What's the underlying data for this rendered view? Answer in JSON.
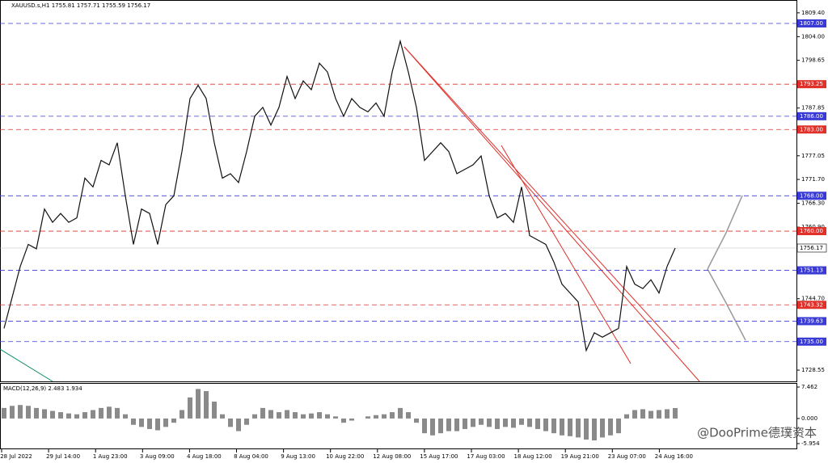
{
  "chart_data": {
    "type": "line",
    "header": "XAUUSD.s,H1  1755.81 1757.71 1755.59 1756.17",
    "watermark": "@DooPrime德璞资本",
    "ylim": [
      1726.0,
      1812.3
    ],
    "yticks": [
      {
        "value": 1809.4,
        "label": "1809.40"
      },
      {
        "value": 1804.0,
        "label": "1804.00"
      },
      1798.65,
      1787.85,
      1777.05,
      {
        "value": 1771.7,
        "label": "1771.70"
      },
      {
        "value": 1766.3,
        "label": "1766.30"
      },
      {
        "value": 1760.9,
        "label": "1760.90"
      },
      {
        "value": 1744.7,
        "label": "1744.70"
      },
      1728.55
    ],
    "xtick_labels": [
      "28 Jul 2022",
      "29 Jul 14:00",
      "1 Aug 23:00",
      "3 Aug 09:00",
      "4 Aug 18:00",
      "8 Aug 04:00",
      "9 Aug 13:00",
      "10 Aug 22:00",
      "12 Aug 08:00",
      "15 Aug 17:00",
      "17 Aug 03:00",
      "18 Aug 12:00",
      "19 Aug 21:00",
      "23 Aug 07:00",
      "24 Aug 16:00"
    ],
    "levels": [
      {
        "value": 1807.0,
        "label": "1807.00",
        "color": "#3a3ad6"
      },
      {
        "value": 1793.25,
        "label": "1793.25",
        "color": "#e0302a"
      },
      {
        "value": 1786.0,
        "label": "1786.00",
        "color": "#3a3ad6"
      },
      {
        "value": 1783.0,
        "label": "1783.00",
        "color": "#e0302a"
      },
      {
        "value": 1768.0,
        "label": "1768.00",
        "color": "#3a3ad6"
      },
      {
        "value": 1760.0,
        "label": "1760.00",
        "color": "#e0302a"
      },
      {
        "value": 1751.13,
        "label": "1751.13",
        "color": "#3a3ad6"
      },
      {
        "value": 1743.32,
        "label": "1743.32",
        "color": "#e0302a"
      },
      {
        "value": 1739.63,
        "label": "1739.63",
        "color": "#3a3ad6"
      },
      {
        "value": 1735.0,
        "label": "1735.00",
        "color": "#3a3ad6"
      }
    ],
    "last_price": {
      "value": 1756.17,
      "label": "1756.17"
    },
    "series": [
      {
        "name": "XAUUSD.s",
        "color": "#111111",
        "values": [
          1738,
          1745,
          1752,
          1757,
          1756,
          1765,
          1762,
          1764,
          1762,
          1763,
          1772,
          1770,
          1776,
          1775,
          1780,
          1768,
          1757,
          1765,
          1764,
          1757,
          1766,
          1768,
          1778,
          1790,
          1793,
          1790,
          1780,
          1772,
          1773,
          1771,
          1778,
          1786,
          1788,
          1784,
          1788,
          1795,
          1790,
          1794,
          1792,
          1798,
          1796,
          1790,
          1786,
          1790,
          1788,
          1787,
          1789,
          1786,
          1796,
          1803,
          1796,
          1788,
          1776,
          1778,
          1780,
          1778,
          1773,
          1774,
          1775,
          1777,
          1768,
          1763,
          1764,
          1762,
          1770,
          1759,
          1758,
          1757,
          1753,
          1748,
          1746,
          1744,
          1733,
          1737,
          1736,
          1737,
          1738,
          1752,
          1748,
          1747,
          1749,
          1746,
          1752,
          1756.17
        ]
      }
    ],
    "macd": {
      "label": "MACD(12,26,9) 2.483 1.934",
      "color": "#8a8a8a",
      "ylim": [
        -7.3,
        8.42
      ],
      "yticks": [
        7.462,
        {
          "value": 0,
          "label": "0.000"
        },
        -5.954
      ],
      "values": [
        2.5,
        3,
        3.2,
        3.0,
        2.5,
        2.2,
        1.8,
        1.5,
        1.2,
        1.0,
        1.5,
        2.0,
        2.5,
        2.8,
        2.5,
        1.0,
        -1.5,
        -2.0,
        -2.5,
        -2.8,
        -2.0,
        -1.0,
        2.0,
        5.0,
        7.0,
        6.5,
        4.0,
        1.0,
        -2.0,
        -3.0,
        -1.5,
        1.0,
        2.5,
        2.0,
        1.5,
        2.0,
        1.5,
        1.0,
        1.2,
        1.5,
        1.0,
        0.5,
        -1.0,
        -0.5,
        0.0,
        0.5,
        0.8,
        1.0,
        1.5,
        2.5,
        1.5,
        -1.0,
        -3.5,
        -4.0,
        -3.5,
        -3.0,
        -3.0,
        -2.5,
        -2.0,
        -1.5,
        -2.0,
        -2.5,
        -2.0,
        -2.2,
        -1.5,
        -2.0,
        -2.5,
        -3.0,
        -3.5,
        -4.0,
        -4.2,
        -4.5,
        -5.0,
        -5.2,
        -4.5,
        -4.0,
        -3.5,
        1.0,
        2.0,
        2.2,
        1.8,
        2.0,
        2.2,
        2.483
      ]
    }
  }
}
